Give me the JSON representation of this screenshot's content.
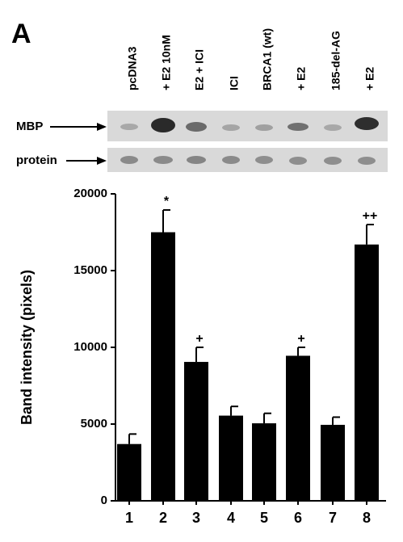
{
  "chart_data": {
    "type": "bar",
    "panel_label": "A",
    "lane_labels": [
      "pcDNA3",
      "+ E2 10nM",
      "E2 + ICI",
      "ICI",
      "BRCA1 (wt)",
      "+ E2",
      "185-del-AG",
      "+ E2"
    ],
    "blot_labels": [
      "MBP",
      "protein"
    ],
    "y_label": "Band  intensity (pixels)",
    "categories": [
      "1",
      "2",
      "3",
      "4",
      "5",
      "6",
      "7",
      "8"
    ],
    "values": [
      3700,
      17500,
      9050,
      5550,
      5050,
      9450,
      4950,
      16700
    ],
    "errors": [
      650,
      1450,
      950,
      600,
      650,
      550,
      500,
      1300
    ],
    "annotations": [
      null,
      "*",
      "+",
      null,
      null,
      "+",
      null,
      "++"
    ],
    "color": "#000000",
    "ylim": [
      0,
      20000
    ],
    "yticks": [
      0,
      5000,
      10000,
      15000,
      20000
    ]
  }
}
